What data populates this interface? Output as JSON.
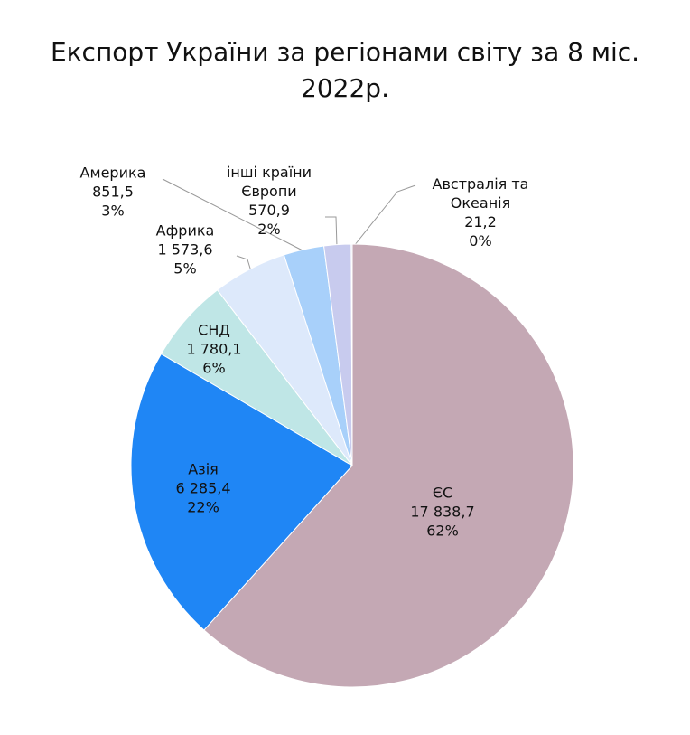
{
  "chart_data": {
    "type": "pie",
    "title": "Експорт України за регіонами світу за 8 міс. 2022р.",
    "categories": [
      "ЄС",
      "Азія",
      "СНД",
      "Африка",
      "Америка",
      "інші країни Європи",
      "Австралія та Океанія"
    ],
    "values": [
      17838.7,
      6285.4,
      1780.1,
      1573.6,
      851.5,
      570.9,
      21.2
    ],
    "value_labels": [
      "17 838,7",
      "6 285,4",
      "1 780,1",
      "1 573,6",
      "851,5",
      "570,9",
      "21,2"
    ],
    "percent_labels": [
      "62%",
      "22%",
      "6%",
      "5%",
      "3%",
      "2%",
      "0%"
    ],
    "colors": [
      "#c4a8b4",
      "#1f86f5",
      "#bfe6e6",
      "#dde9fb",
      "#a8d0fa",
      "#c8cbee",
      "#9fa8e0"
    ]
  }
}
